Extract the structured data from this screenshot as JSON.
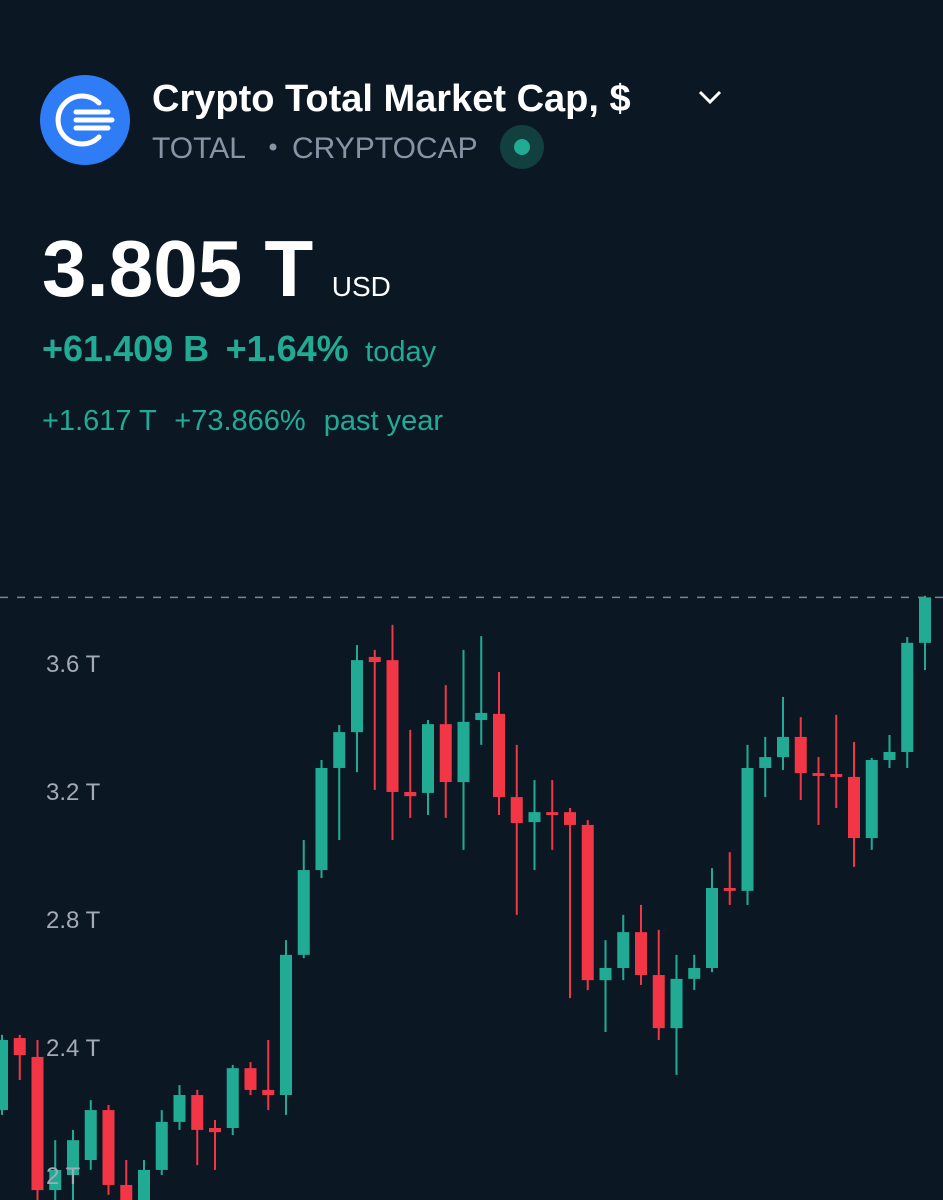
{
  "header": {
    "title": "Crypto Total Market Cap, $",
    "symbol": "TOTAL",
    "exchange": "CRYPTOCAP",
    "price": "3.805 T",
    "currency": "USD",
    "change_abs": "+61.409 B",
    "change_pct": "+1.64%",
    "change_period": "today",
    "year_change_abs": "+1.617 T",
    "year_change_pct": "+73.866%",
    "year_period": "past year"
  },
  "chart_data": {
    "type": "candlestick",
    "up_color": "#22ab94",
    "down_color": "#f23645",
    "ylim": [
      1.922,
      3.875
    ],
    "yticks": [
      {
        "value": 2,
        "label": "2 T"
      },
      {
        "value": 2.4,
        "label": "2.4 T"
      },
      {
        "value": 2.8,
        "label": "2.8 T"
      },
      {
        "value": 3.2,
        "label": "3.2 T"
      },
      {
        "value": 3.6,
        "label": "3.6 T"
      }
    ],
    "open": [
      2.203,
      2.428,
      2.369,
      1.953,
      2.0,
      2.047,
      2.203,
      1.969,
      1.922,
      2.016,
      2.166,
      2.25,
      2.147,
      2.147,
      2.334,
      2.266,
      2.25,
      2.688,
      2.953,
      3.272,
      3.384,
      3.619,
      3.609,
      3.197,
      3.194,
      3.409,
      3.228,
      3.422,
      3.441,
      3.181,
      3.103,
      3.134,
      3.134,
      3.094,
      2.609,
      2.647,
      2.759,
      2.625,
      2.459,
      2.613,
      2.647,
      2.897,
      2.888,
      3.272,
      3.306,
      3.369,
      3.256,
      3.253,
      3.244,
      3.053,
      3.297,
      3.322,
      3.663
    ],
    "high": [
      2.438,
      2.438,
      2.422,
      2.109,
      2.141,
      2.234,
      2.219,
      2.047,
      2.047,
      2.203,
      2.281,
      2.266,
      2.172,
      2.344,
      2.353,
      2.422,
      2.734,
      3.047,
      3.297,
      3.406,
      3.656,
      3.641,
      3.719,
      3.391,
      3.422,
      3.531,
      3.641,
      3.684,
      3.572,
      3.344,
      3.234,
      3.234,
      3.147,
      3.109,
      2.734,
      2.813,
      2.844,
      2.766,
      2.688,
      2.688,
      2.959,
      3.009,
      3.344,
      3.369,
      3.494,
      3.431,
      3.306,
      3.438,
      3.353,
      3.303,
      3.375,
      3.681,
      3.81
    ],
    "low": [
      2.188,
      2.297,
      1.922,
      1.922,
      1.922,
      2.016,
      1.938,
      1.922,
      1.922,
      2.0,
      2.141,
      2.031,
      2.016,
      2.125,
      2.25,
      2.203,
      2.188,
      2.678,
      2.928,
      3.047,
      3.259,
      3.203,
      3.047,
      3.116,
      3.125,
      3.116,
      3.016,
      3.344,
      3.125,
      2.813,
      2.953,
      3.016,
      2.553,
      2.578,
      2.447,
      2.609,
      2.594,
      2.422,
      2.313,
      2.578,
      2.634,
      2.844,
      2.844,
      3.181,
      3.266,
      3.172,
      3.094,
      3.147,
      2.963,
      3.016,
      3.272,
      3.272,
      3.578
    ],
    "close": [
      2.422,
      2.375,
      1.953,
      2.016,
      2.109,
      2.203,
      1.969,
      1.922,
      2.016,
      2.166,
      2.25,
      2.141,
      2.134,
      2.334,
      2.266,
      2.25,
      2.688,
      2.953,
      3.272,
      3.384,
      3.609,
      3.603,
      3.197,
      3.184,
      3.409,
      3.228,
      3.416,
      3.444,
      3.181,
      3.1,
      3.134,
      3.125,
      3.094,
      2.609,
      2.647,
      2.759,
      2.625,
      2.459,
      2.613,
      2.647,
      2.897,
      2.888,
      3.272,
      3.306,
      3.369,
      3.256,
      3.247,
      3.244,
      3.053,
      3.297,
      3.322,
      3.663,
      3.805
    ]
  }
}
